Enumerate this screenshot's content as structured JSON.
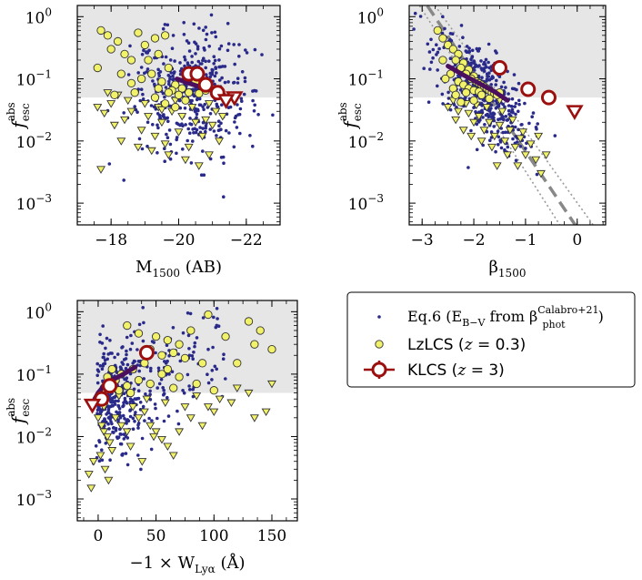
{
  "chart_data": [
    {
      "id": "panel-m1500",
      "type": "scatter",
      "xlabel": "M",
      "xlabel_sub": "1500",
      "xlabel_suffix": " (AB)",
      "ylabel": "f",
      "ylabel_sub": "esc",
      "ylabel_sup": "abs",
      "xlim": [
        -17.0,
        -23.0
      ],
      "ylim_log10": [
        -3.35,
        0.18
      ],
      "x_ticks": [
        -18,
        -20,
        -22
      ],
      "x_tick_labels": [
        "−18",
        "−20",
        "−22"
      ],
      "y_ticks_log10": [
        0,
        -1,
        -2,
        -3
      ],
      "y_tick_base": "10",
      "y_tick_exponents": [
        "0",
        "−1",
        "−2",
        "−3"
      ],
      "shade_lower": 0.05,
      "lzlcs_circles": [
        [
          -17.7,
          0.6
        ],
        [
          -17.9,
          0.5
        ],
        [
          -18.2,
          0.4
        ],
        [
          -18.0,
          0.3
        ],
        [
          -18.8,
          0.55
        ],
        [
          -19.0,
          0.35
        ],
        [
          -19.3,
          0.45
        ],
        [
          -19.6,
          0.5
        ],
        [
          -18.4,
          0.25
        ],
        [
          -18.6,
          0.2
        ],
        [
          -19.1,
          0.2
        ],
        [
          -19.4,
          0.25
        ],
        [
          -17.6,
          0.15
        ],
        [
          -18.3,
          0.12
        ],
        [
          -18.9,
          0.1
        ],
        [
          -19.2,
          0.12
        ],
        [
          -19.7,
          0.15
        ],
        [
          -19.5,
          0.09
        ],
        [
          -19.9,
          0.08
        ],
        [
          -20.1,
          0.07
        ],
        [
          -19.8,
          0.065
        ],
        [
          -20.3,
          0.06
        ],
        [
          -20.6,
          0.058
        ],
        [
          -20.0,
          0.055
        ],
        [
          -19.7,
          0.06
        ],
        [
          -18.7,
          0.06
        ],
        [
          -18.1,
          0.055
        ],
        [
          -19.4,
          0.07
        ],
        [
          -20.5,
          0.09
        ],
        [
          -20.8,
          0.065
        ],
        [
          -20.2,
          0.045
        ],
        [
          -19.6,
          0.04
        ],
        [
          -19.9,
          0.035
        ],
        [
          -19.3,
          0.05
        ],
        [
          -18.6,
          0.085
        ]
      ],
      "lzlcs_triangles": [
        [
          -17.6,
          0.035
        ],
        [
          -17.8,
          0.028
        ],
        [
          -18.1,
          0.018
        ],
        [
          -18.4,
          0.022
        ],
        [
          -18.6,
          0.03
        ],
        [
          -18.9,
          0.015
        ],
        [
          -19.1,
          0.025
        ],
        [
          -19.3,
          0.012
        ],
        [
          -19.5,
          0.02
        ],
        [
          -19.6,
          0.009
        ],
        [
          -19.8,
          0.03
        ],
        [
          -20.0,
          0.014
        ],
        [
          -20.1,
          0.025
        ],
        [
          -20.3,
          0.008
        ],
        [
          -20.5,
          0.02
        ],
        [
          -20.7,
          0.012
        ],
        [
          -20.9,
          0.006
        ],
        [
          -21.0,
          0.018
        ],
        [
          -21.2,
          0.01
        ],
        [
          -18.3,
          0.01
        ],
        [
          -18.8,
          0.008
        ],
        [
          -19.2,
          0.007
        ],
        [
          -19.7,
          0.006
        ],
        [
          -20.2,
          0.005
        ],
        [
          -20.6,
          0.004
        ],
        [
          -17.7,
          0.0035
        ],
        [
          -18.5,
          0.045
        ],
        [
          -19.0,
          0.04
        ],
        [
          -19.4,
          0.035
        ],
        [
          -20.4,
          0.035
        ],
        [
          -21.1,
          0.03
        ],
        [
          -21.4,
          0.045
        ],
        [
          -18.2,
          0.055
        ],
        [
          -17.9,
          0.06
        ],
        [
          -19.9,
          0.045
        ],
        [
          -20.8,
          0.022
        ],
        [
          -21.3,
          0.025
        ],
        [
          -18.0,
          0.04
        ],
        [
          -19.5,
          0.032
        ],
        [
          -20.9,
          0.04
        ]
      ],
      "klcs_circles": [
        [
          -20.3,
          0.12
        ],
        [
          -20.55,
          0.12
        ],
        [
          -20.8,
          0.08
        ],
        [
          -21.15,
          0.06
        ]
      ],
      "klcs_triangles": [
        [
          -21.65,
          0.05
        ],
        [
          -21.4,
          0.045
        ]
      ],
      "trend_line": [
        [
          -19.95,
          0.1
        ],
        [
          -20.3,
          0.085
        ],
        [
          -20.7,
          0.072
        ],
        [
          -21.0,
          0.065
        ],
        [
          -21.3,
          0.06
        ]
      ]
    },
    {
      "id": "panel-beta",
      "type": "scatter",
      "xlabel": "β",
      "xlabel_sub": "1500",
      "xlabel_suffix": "",
      "ylabel": "f",
      "ylabel_sub": "esc",
      "ylabel_sup": "abs",
      "xlim": [
        -3.25,
        0.55
      ],
      "ylim_log10": [
        -3.35,
        0.18
      ],
      "x_ticks": [
        -3,
        -2,
        -1,
        0
      ],
      "x_tick_labels": [
        "−3",
        "−2",
        "−1",
        "0"
      ],
      "y_ticks_log10": [
        0,
        -1,
        -2,
        -3
      ],
      "y_tick_base": "10",
      "y_tick_exponents": [
        "0",
        "−1",
        "−2",
        "−3"
      ],
      "shade_lower": 0.05,
      "lzlcs_circles": [
        [
          -2.7,
          0.6
        ],
        [
          -2.6,
          0.45
        ],
        [
          -2.5,
          0.35
        ],
        [
          -2.4,
          0.3
        ],
        [
          -2.3,
          0.25
        ],
        [
          -2.35,
          0.2
        ],
        [
          -2.2,
          0.18
        ],
        [
          -2.25,
          0.15
        ],
        [
          -2.1,
          0.14
        ],
        [
          -2.15,
          0.12
        ],
        [
          -2.0,
          0.11
        ],
        [
          -2.05,
          0.1
        ],
        [
          -1.95,
          0.09
        ],
        [
          -1.9,
          0.085
        ],
        [
          -1.85,
          0.08
        ],
        [
          -1.8,
          0.075
        ],
        [
          -1.75,
          0.07
        ],
        [
          -1.7,
          0.065
        ],
        [
          -1.65,
          0.06
        ],
        [
          -1.6,
          0.058
        ],
        [
          -1.55,
          0.055
        ],
        [
          -2.45,
          0.12
        ],
        [
          -2.3,
          0.09
        ],
        [
          -2.2,
          0.08
        ],
        [
          -2.1,
          0.07
        ],
        [
          -2.0,
          0.065
        ],
        [
          -1.9,
          0.062
        ],
        [
          -2.55,
          0.1
        ],
        [
          -2.4,
          0.07
        ],
        [
          -1.5,
          0.06
        ],
        [
          -2.6,
          0.2
        ],
        [
          -2.15,
          0.06
        ],
        [
          -1.85,
          0.055
        ],
        [
          -2.35,
          0.055
        ],
        [
          -1.7,
          0.048
        ],
        [
          -2.0,
          0.045
        ],
        [
          -2.25,
          0.042
        ]
      ],
      "lzlcs_triangles": [
        [
          -2.5,
          0.035
        ],
        [
          -2.3,
          0.03
        ],
        [
          -2.1,
          0.028
        ],
        [
          -1.9,
          0.025
        ],
        [
          -1.7,
          0.02
        ],
        [
          -1.5,
          0.018
        ],
        [
          -1.3,
          0.015
        ],
        [
          -2.0,
          0.02
        ],
        [
          -1.8,
          0.015
        ],
        [
          -1.6,
          0.012
        ],
        [
          -1.4,
          0.01
        ],
        [
          -1.2,
          0.008
        ],
        [
          -2.2,
          0.015
        ],
        [
          -1.0,
          0.006
        ],
        [
          -0.8,
          0.005
        ],
        [
          -1.1,
          0.011
        ],
        [
          -1.35,
          0.006
        ],
        [
          -1.55,
          0.004
        ],
        [
          -2.4,
          0.045
        ],
        [
          -2.15,
          0.04
        ],
        [
          -1.95,
          0.038
        ],
        [
          -1.75,
          0.035
        ],
        [
          -1.45,
          0.03
        ],
        [
          -1.25,
          0.022
        ],
        [
          -0.9,
          0.009
        ],
        [
          -0.6,
          0.006
        ],
        [
          -1.65,
          0.008
        ],
        [
          -1.85,
          0.01
        ],
        [
          -2.35,
          0.022
        ],
        [
          -1.05,
          0.014
        ],
        [
          -0.75,
          0.012
        ],
        [
          -1.5,
          0.045
        ],
        [
          -2.05,
          0.012
        ],
        [
          -1.15,
          0.004
        ],
        [
          -0.7,
          0.003
        ]
      ],
      "klcs_circles": [
        [
          -1.5,
          0.15
        ],
        [
          -0.95,
          0.068
        ],
        [
          -0.55,
          0.05
        ]
      ],
      "klcs_triangles": [
        [
          -0.05,
          0.03
        ]
      ],
      "trend_line": [
        [
          -2.5,
          0.16
        ],
        [
          -2.2,
          0.115
        ],
        [
          -1.9,
          0.085
        ],
        [
          -1.6,
          0.062
        ],
        [
          -1.35,
          0.045
        ]
      ],
      "dashed_line": [
        [
          -2.9,
          1.5
        ],
        [
          0.0,
          0.0004
        ]
      ],
      "dotted_lines": [
        [
          [
            -3.05,
            1.5
          ],
          [
            -0.3,
            0.0004
          ]
        ],
        [
          [
            -2.75,
            1.5
          ],
          [
            0.35,
            0.0004
          ]
        ]
      ]
    },
    {
      "id": "panel-wlya",
      "type": "scatter",
      "xlabel": "−1 × W",
      "xlabel_sub": "Lyα",
      "xlabel_suffix": " (Å)",
      "ylabel": "f",
      "ylabel_sub": "esc",
      "ylabel_sup": "abs",
      "xlim": [
        -18,
        172
      ],
      "ylim_log10": [
        -3.35,
        0.18
      ],
      "x_ticks": [
        0,
        50,
        100,
        150
      ],
      "x_tick_labels": [
        "0",
        "50",
        "100",
        "150"
      ],
      "y_ticks_log10": [
        0,
        -1,
        -2,
        -3
      ],
      "y_tick_base": "10",
      "y_tick_exponents": [
        "0",
        "−1",
        "−2",
        "−3"
      ],
      "shade_lower": 0.05,
      "lzlcs_circles": [
        [
          25,
          0.6
        ],
        [
          35,
          0.45
        ],
        [
          50,
          0.4
        ],
        [
          60,
          0.35
        ],
        [
          70,
          0.3
        ],
        [
          80,
          0.5
        ],
        [
          95,
          0.9
        ],
        [
          110,
          0.4
        ],
        [
          130,
          0.7
        ],
        [
          140,
          0.5
        ],
        [
          150,
          0.25
        ],
        [
          45,
          0.25
        ],
        [
          55,
          0.2
        ],
        [
          65,
          0.22
        ],
        [
          75,
          0.18
        ],
        [
          90,
          0.15
        ],
        [
          120,
          0.15
        ],
        [
          135,
          0.3
        ],
        [
          40,
          0.15
        ],
        [
          30,
          0.12
        ],
        [
          20,
          0.1
        ],
        [
          15,
          0.08
        ],
        [
          10,
          0.07
        ],
        [
          5,
          0.06
        ],
        [
          25,
          0.065
        ],
        [
          35,
          0.08
        ],
        [
          45,
          0.07
        ],
        [
          55,
          0.1
        ],
        [
          65,
          0.06
        ],
        [
          85,
          0.07
        ],
        [
          100,
          0.055
        ],
        [
          18,
          0.055
        ],
        [
          28,
          0.05
        ],
        [
          8,
          0.09
        ],
        [
          12,
          0.12
        ],
        [
          60,
          0.12
        ],
        [
          70,
          0.09
        ]
      ],
      "lzlcs_triangles": [
        [
          -5,
          0.035
        ],
        [
          0,
          0.02
        ],
        [
          3,
          0.015
        ],
        [
          5,
          0.012
        ],
        [
          8,
          0.01
        ],
        [
          10,
          0.008
        ],
        [
          12,
          0.006
        ],
        [
          15,
          0.02
        ],
        [
          20,
          0.015
        ],
        [
          25,
          0.012
        ],
        [
          30,
          0.03
        ],
        [
          35,
          0.02
        ],
        [
          40,
          0.025
        ],
        [
          45,
          0.015
        ],
        [
          50,
          0.012
        ],
        [
          55,
          0.009
        ],
        [
          60,
          0.007
        ],
        [
          65,
          0.005
        ],
        [
          70,
          0.012
        ],
        [
          80,
          0.02
        ],
        [
          90,
          0.015
        ],
        [
          95,
          0.03
        ],
        [
          100,
          0.025
        ],
        [
          120,
          0.06
        ],
        [
          130,
          0.05
        ],
        [
          145,
          0.025
        ],
        [
          150,
          0.07
        ],
        [
          -8,
          0.0025
        ],
        [
          -6,
          0.0015
        ],
        [
          -4,
          0.004
        ],
        [
          2,
          0.005
        ],
        [
          6,
          0.003
        ],
        [
          9,
          0.002
        ],
        [
          28,
          0.007
        ],
        [
          38,
          0.004
        ],
        [
          48,
          0.01
        ],
        [
          75,
          0.03
        ],
        [
          85,
          0.045
        ],
        [
          105,
          0.04
        ],
        [
          115,
          0.035
        ],
        [
          135,
          0.02
        ],
        [
          18,
          0.045
        ],
        [
          42,
          0.04
        ],
        [
          58,
          0.035
        ],
        [
          5,
          0.03
        ]
      ],
      "klcs_circles": [
        [
          42,
          0.22
        ],
        [
          10,
          0.065
        ],
        [
          3,
          0.04
        ]
      ],
      "klcs_triangles": [
        [
          -5,
          0.032
        ]
      ],
      "trend_line": [
        [
          -3,
          0.04
        ],
        [
          0,
          0.05
        ],
        [
          5,
          0.065
        ],
        [
          12,
          0.08
        ],
        [
          22,
          0.1
        ],
        [
          32,
          0.13
        ]
      ]
    }
  ],
  "legend": {
    "location": "right of bottom-left panel",
    "entries": [
      {
        "id": "eq6",
        "text": "Eq.6 (E",
        "sub": "B−V",
        "mid": " from β",
        "sup": "Calabro+21",
        "sub2": "phot",
        "end": ")"
      },
      {
        "id": "lzlcs",
        "text": "LzLCS (",
        "italic": "z",
        "end": " = 0.3)"
      },
      {
        "id": "klcs",
        "text": "KLCS (",
        "italic": "z",
        "end": " = 3)"
      }
    ]
  },
  "colors": {
    "shade": "#e6e6e6",
    "dots": "#2a2a8a",
    "lzlcs_fill": "#f2f26a",
    "lzlcs_edge": "#333333",
    "klcs_edge": "#9b0f0f",
    "trend_line": "#4a0f5e",
    "dashed": "#888888"
  }
}
